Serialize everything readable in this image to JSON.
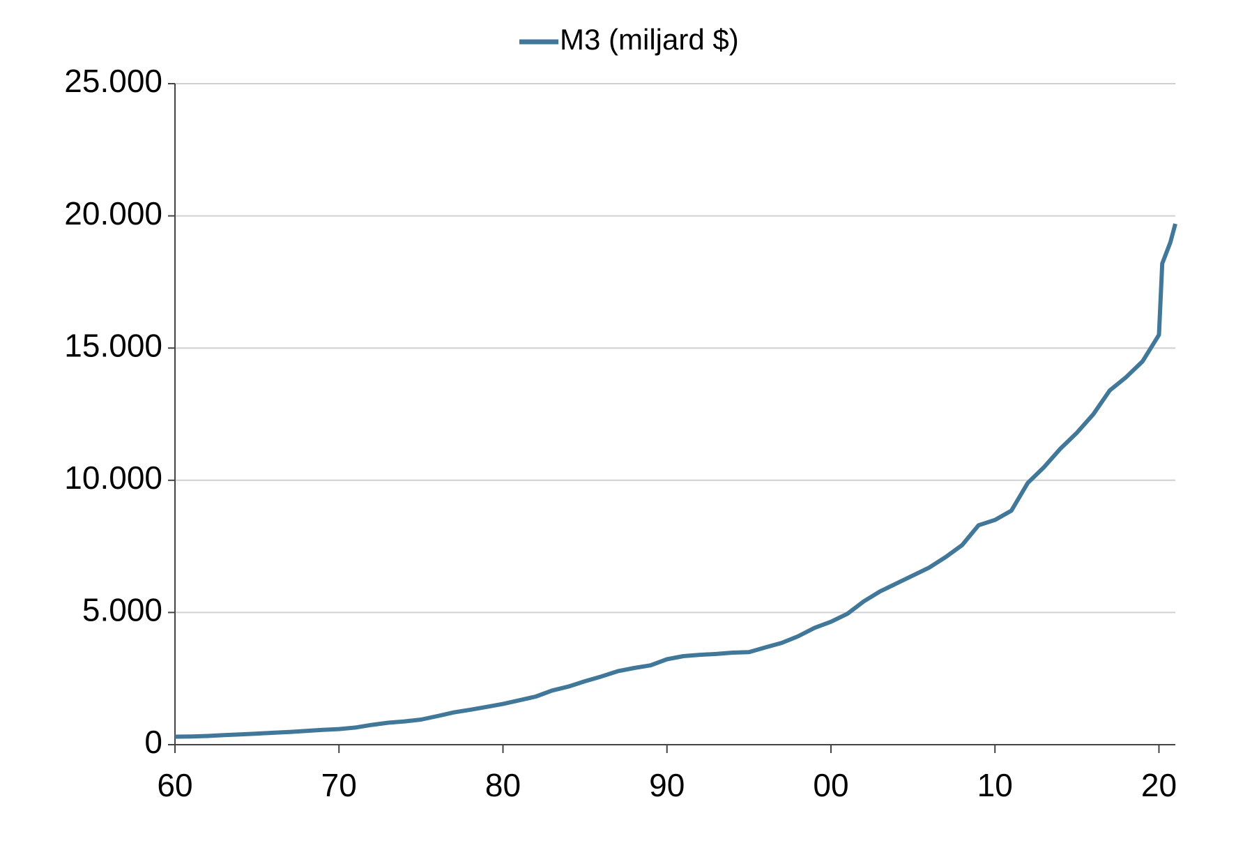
{
  "chart_data": {
    "type": "line",
    "x": [
      1960,
      1961,
      1962,
      1963,
      1964,
      1965,
      1966,
      1967,
      1968,
      1969,
      1970,
      1971,
      1972,
      1973,
      1974,
      1975,
      1976,
      1977,
      1978,
      1979,
      1980,
      1981,
      1982,
      1983,
      1984,
      1985,
      1986,
      1987,
      1988,
      1989,
      1990,
      1991,
      1992,
      1993,
      1994,
      1995,
      1996,
      1997,
      1998,
      1999,
      2000,
      2001,
      2002,
      2003,
      2004,
      2005,
      2006,
      2007,
      2008,
      2009,
      2010,
      2011,
      2012,
      2013,
      2014,
      2015,
      2016,
      2017,
      2018,
      2019,
      2020,
      2020.2,
      2020.7,
      2021
    ],
    "series": [
      {
        "name": "M3 (miljard $)",
        "color": "#41789a",
        "values": [
          300,
          310,
          330,
          360,
          390,
          420,
          450,
          480,
          520,
          560,
          590,
          650,
          750,
          830,
          880,
          950,
          1080,
          1220,
          1320,
          1430,
          1540,
          1680,
          1820,
          2050,
          2200,
          2400,
          2580,
          2780,
          2900,
          3000,
          3230,
          3350,
          3400,
          3430,
          3480,
          3500,
          3680,
          3850,
          4100,
          4420,
          4650,
          4950,
          5420,
          5800,
          6100,
          6400,
          6700,
          7100,
          7550,
          8300,
          8500,
          8850,
          9900,
          10500,
          11200,
          11800,
          12500,
          13400,
          13900,
          14500,
          15500,
          18200,
          19000,
          19700
        ]
      }
    ],
    "xlim": [
      1960,
      2021
    ],
    "xticks": [
      {
        "value": 1960,
        "label": "60"
      },
      {
        "value": 1970,
        "label": "70"
      },
      {
        "value": 1980,
        "label": "80"
      },
      {
        "value": 1990,
        "label": "90"
      },
      {
        "value": 2000,
        "label": "00"
      },
      {
        "value": 2010,
        "label": "10"
      },
      {
        "value": 2020,
        "label": "20"
      }
    ],
    "ylim": [
      0,
      25000
    ],
    "yticks": [
      0,
      {
        "value": 5000,
        "label": "5.000"
      },
      {
        "value": 10000,
        "label": "10.000"
      },
      {
        "value": 15000,
        "label": "15.000"
      },
      {
        "value": 20000,
        "label": "20.000"
      },
      {
        "value": 25000,
        "label": "25.000"
      }
    ],
    "grid": true,
    "legend": "top"
  }
}
